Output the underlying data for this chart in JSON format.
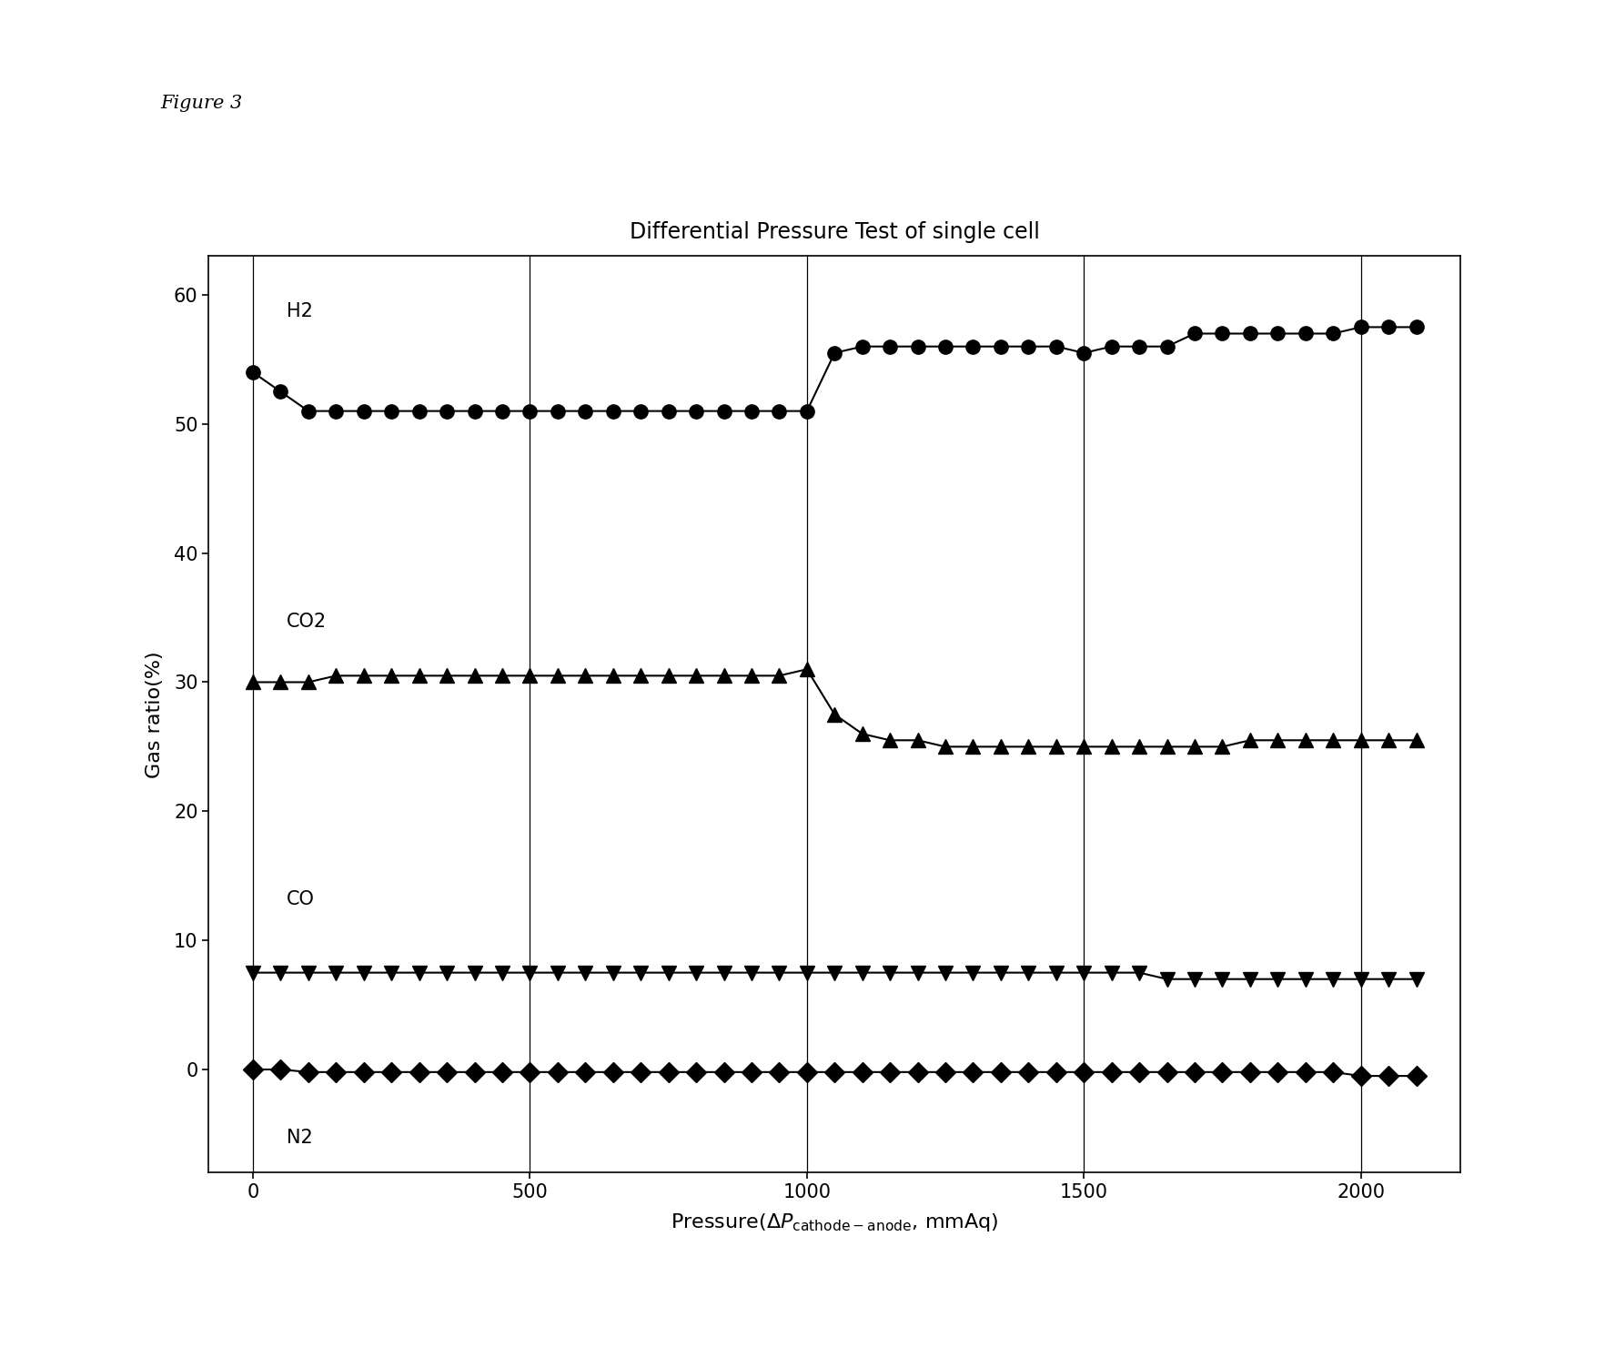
{
  "title": "Differential Pressure Test of single cell",
  "figure_label": "Figure 3",
  "ylabel": "Gas ratio(%)",
  "xlim": [
    -80,
    2180
  ],
  "ylim": [
    -8,
    63
  ],
  "yticks": [
    0,
    10,
    20,
    30,
    40,
    50,
    60
  ],
  "xticks": [
    0,
    500,
    1000,
    1500,
    2000
  ],
  "vlines": [
    0,
    500,
    1000,
    1500,
    2000
  ],
  "H2_x": [
    0,
    50,
    100,
    150,
    200,
    250,
    300,
    350,
    400,
    450,
    500,
    550,
    600,
    650,
    700,
    750,
    800,
    850,
    900,
    950,
    1000,
    1050,
    1100,
    1150,
    1200,
    1250,
    1300,
    1350,
    1400,
    1450,
    1500,
    1550,
    1600,
    1650,
    1700,
    1750,
    1800,
    1850,
    1900,
    1950,
    2000,
    2050,
    2100
  ],
  "H2_y": [
    54,
    52.5,
    51,
    51,
    51,
    51,
    51,
    51,
    51,
    51,
    51,
    51,
    51,
    51,
    51,
    51,
    51,
    51,
    51,
    51,
    51,
    55.5,
    56,
    56,
    56,
    56,
    56,
    56,
    56,
    56,
    55.5,
    56,
    56,
    56,
    57,
    57,
    57,
    57,
    57,
    57,
    57.5,
    57.5,
    57.5
  ],
  "CO2_x": [
    0,
    50,
    100,
    150,
    200,
    250,
    300,
    350,
    400,
    450,
    500,
    550,
    600,
    650,
    700,
    750,
    800,
    850,
    900,
    950,
    1000,
    1050,
    1100,
    1150,
    1200,
    1250,
    1300,
    1350,
    1400,
    1450,
    1500,
    1550,
    1600,
    1650,
    1700,
    1750,
    1800,
    1850,
    1900,
    1950,
    2000,
    2050,
    2100
  ],
  "CO2_y": [
    30,
    30,
    30,
    30.5,
    30.5,
    30.5,
    30.5,
    30.5,
    30.5,
    30.5,
    30.5,
    30.5,
    30.5,
    30.5,
    30.5,
    30.5,
    30.5,
    30.5,
    30.5,
    30.5,
    31,
    27.5,
    26,
    25.5,
    25.5,
    25,
    25,
    25,
    25,
    25,
    25,
    25,
    25,
    25,
    25,
    25,
    25.5,
    25.5,
    25.5,
    25.5,
    25.5,
    25.5,
    25.5
  ],
  "CO_x": [
    0,
    50,
    100,
    150,
    200,
    250,
    300,
    350,
    400,
    450,
    500,
    550,
    600,
    650,
    700,
    750,
    800,
    850,
    900,
    950,
    1000,
    1050,
    1100,
    1150,
    1200,
    1250,
    1300,
    1350,
    1400,
    1450,
    1500,
    1550,
    1600,
    1650,
    1700,
    1750,
    1800,
    1850,
    1900,
    1950,
    2000,
    2050,
    2100
  ],
  "CO_y": [
    7.5,
    7.5,
    7.5,
    7.5,
    7.5,
    7.5,
    7.5,
    7.5,
    7.5,
    7.5,
    7.5,
    7.5,
    7.5,
    7.5,
    7.5,
    7.5,
    7.5,
    7.5,
    7.5,
    7.5,
    7.5,
    7.5,
    7.5,
    7.5,
    7.5,
    7.5,
    7.5,
    7.5,
    7.5,
    7.5,
    7.5,
    7.5,
    7.5,
    7,
    7,
    7,
    7,
    7,
    7,
    7,
    7,
    7,
    7
  ],
  "N2_x": [
    0,
    50,
    100,
    150,
    200,
    250,
    300,
    350,
    400,
    450,
    500,
    550,
    600,
    650,
    700,
    750,
    800,
    850,
    900,
    950,
    1000,
    1050,
    1100,
    1150,
    1200,
    1250,
    1300,
    1350,
    1400,
    1450,
    1500,
    1550,
    1600,
    1650,
    1700,
    1750,
    1800,
    1850,
    1900,
    1950,
    2000,
    2050,
    2100
  ],
  "N2_y": [
    0,
    0,
    -0.2,
    -0.2,
    -0.2,
    -0.2,
    -0.2,
    -0.2,
    -0.2,
    -0.2,
    -0.2,
    -0.2,
    -0.2,
    -0.2,
    -0.2,
    -0.2,
    -0.2,
    -0.2,
    -0.2,
    -0.2,
    -0.2,
    -0.2,
    -0.2,
    -0.2,
    -0.2,
    -0.2,
    -0.2,
    -0.2,
    -0.2,
    -0.2,
    -0.2,
    -0.2,
    -0.2,
    -0.2,
    -0.2,
    -0.2,
    -0.2,
    -0.2,
    -0.2,
    -0.2,
    -0.5,
    -0.5,
    -0.5
  ],
  "line_color": "black",
  "marker_size": 11,
  "ann_H2_x": 60,
  "ann_H2_y": 58,
  "ann_CO2_x": 60,
  "ann_CO2_y": 34,
  "ann_CO_x": 60,
  "ann_CO_y": 12.5,
  "ann_N2_x": 60,
  "ann_N2_y": -6
}
